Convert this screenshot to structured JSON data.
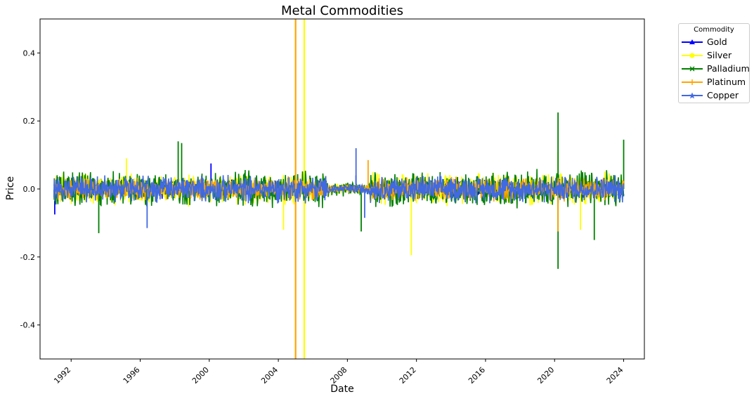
{
  "chart_data": {
    "type": "line",
    "title": "Metal Commodities",
    "xlabel": "Date",
    "ylabel": "Price",
    "xlim": [
      1990.2,
      2025.2
    ],
    "ylim": [
      -0.5,
      0.5
    ],
    "x_ticks": [
      "1992",
      "1996",
      "2000",
      "2004",
      "2008",
      "2012",
      "2016",
      "2020",
      "2024"
    ],
    "y_ticks": [
      "-0.4",
      "-0.2",
      "0.0",
      "0.2",
      "0.4"
    ],
    "x_range": [
      1991.0,
      2024.0
    ],
    "legend_title": "Commodity",
    "legend_position": "outside-top-right",
    "grid": false,
    "series": [
      {
        "name": "Gold",
        "color": "#0000ff",
        "marker": "triangle",
        "typical_amplitude": 0.02,
        "spikes": [
          {
            "x": 1991.05,
            "y": -0.075
          },
          {
            "x": 2000.1,
            "y": 0.075
          },
          {
            "x": 2008.5,
            "y": 0.04
          }
        ]
      },
      {
        "name": "Silver",
        "color": "#ffff00",
        "marker": "circle",
        "typical_amplitude": 0.035,
        "spikes": [
          {
            "x": 1995.2,
            "y": 0.09
          },
          {
            "x": 2004.3,
            "y": -0.12
          },
          {
            "x": 2005.5,
            "y": 0.5
          },
          {
            "x": 2005.5,
            "y": -0.5
          },
          {
            "x": 2011.7,
            "y": -0.195
          },
          {
            "x": 2020.2,
            "y": 0.11
          },
          {
            "x": 2021.5,
            "y": -0.12
          }
        ]
      },
      {
        "name": "Palladium",
        "color": "#008000",
        "marker": "x",
        "typical_amplitude": 0.04,
        "spikes": [
          {
            "x": 1993.6,
            "y": -0.13
          },
          {
            "x": 1998.2,
            "y": 0.14
          },
          {
            "x": 1998.4,
            "y": 0.135
          },
          {
            "x": 2008.8,
            "y": -0.125
          },
          {
            "x": 2020.2,
            "y": 0.225
          },
          {
            "x": 2020.2,
            "y": -0.235
          },
          {
            "x": 2022.3,
            "y": -0.15
          },
          {
            "x": 2024.0,
            "y": 0.145
          }
        ]
      },
      {
        "name": "Platinum",
        "color": "#ffa500",
        "marker": "plus",
        "typical_amplitude": 0.025,
        "spikes": [
          {
            "x": 2005.0,
            "y": 0.5
          },
          {
            "x": 2005.0,
            "y": -0.5
          },
          {
            "x": 2020.2,
            "y": -0.125
          },
          {
            "x": 2009.2,
            "y": 0.085
          }
        ]
      },
      {
        "name": "Copper",
        "color": "#4169e1",
        "marker": "star",
        "typical_amplitude": 0.03,
        "spikes": [
          {
            "x": 1996.4,
            "y": -0.115
          },
          {
            "x": 2008.5,
            "y": 0.12
          },
          {
            "x": 2009.0,
            "y": -0.085
          }
        ]
      }
    ]
  }
}
